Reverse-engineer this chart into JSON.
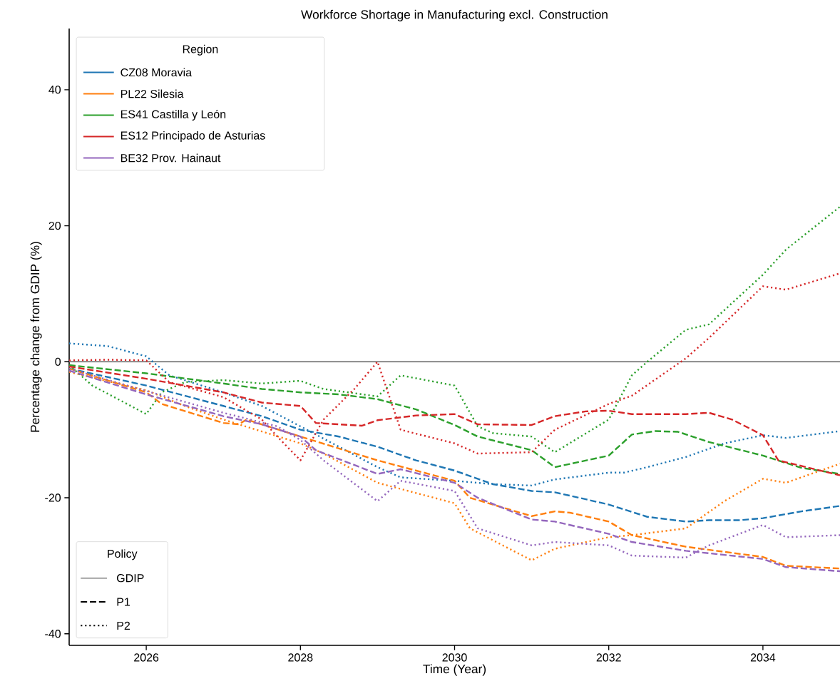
{
  "chart_data": {
    "type": "line",
    "title": "Workforce Shortage in Manufacturing excl. Construction",
    "xlabel": "Time (Year)",
    "ylabel": "Percentage change from GDIP (%)",
    "legend_title": "Region",
    "legend": "top left",
    "grid": false,
    "marker": "none",
    "xlim": [
      2025,
      2035
    ],
    "ylim": [
      -41.7,
      49
    ],
    "xticks": [
      2026,
      2028,
      2030,
      2032,
      2034
    ],
    "yticks": [
      -40,
      -20,
      0,
      20,
      40
    ],
    "annotations": [
      "Policy",
      "P1",
      "P2"
    ],
    "series": [
      {
        "name": "GDIP",
        "color": "#808080",
        "line_style": "solid",
        "x": [
          2025,
          2035
        ],
        "values": [
          0,
          0
        ]
      },
      {
        "name": "CZ08 Moravia",
        "color": "#1f77b4",
        "line_style": "dashed",
        "x": [
          2025,
          2026,
          2027,
          2027.5,
          2028,
          2028.5,
          2029,
          2029.5,
          2030,
          2030.5,
          2031,
          2031.3,
          2031.5,
          2032,
          2032.5,
          2033,
          2033.3,
          2033.7,
          2034,
          2034.5,
          2035
        ],
        "values": [
          -1,
          -3.5,
          -6.5,
          -8,
          -10,
          -11,
          -12.5,
          -14.5,
          -16,
          -18,
          -19,
          -19.2,
          -19.7,
          -21,
          -22.8,
          -23.5,
          -23.3,
          -23.3,
          -23,
          -22,
          -21.2
        ]
      },
      {
        "color": "#1f77b4",
        "line_style": "dotted",
        "x": [
          2025,
          2025.5,
          2026,
          2026.3,
          2027,
          2027.5,
          2028,
          2028.5,
          2029,
          2029.3,
          2030,
          2030.5,
          2031,
          2031.3,
          2032,
          2032.2,
          2032.5,
          2033,
          2033.5,
          2034,
          2034.3,
          2035
        ],
        "values": [
          2.7,
          2.3,
          0.8,
          -2,
          -4.5,
          -6.5,
          -9.5,
          -12.5,
          -15.5,
          -17,
          -17.5,
          -18,
          -18.2,
          -17.3,
          -16.3,
          -16.3,
          -15.5,
          -14,
          -12,
          -10.8,
          -11.2,
          -10.2
        ]
      },
      {
        "name": "PL22 Silesia",
        "color": "#ff7f0e",
        "line_style": "dashed",
        "x": [
          2025,
          2026,
          2026.2,
          2027,
          2027.2,
          2027.3,
          2028,
          2029,
          2030,
          2030.2,
          2031,
          2031.3,
          2031.5,
          2032,
          2032.3,
          2033,
          2034,
          2034.3,
          2035
        ],
        "values": [
          -1,
          -4.5,
          -6.2,
          -9,
          -9.2,
          -8.5,
          -11,
          -14.5,
          -17.5,
          -20,
          -22.7,
          -22,
          -22.2,
          -23.5,
          -25.5,
          -27.2,
          -28.7,
          -30,
          -30.4
        ]
      },
      {
        "color": "#ff7f0e",
        "line_style": "dotted",
        "x": [
          2025,
          2026,
          2026.5,
          2027,
          2028,
          2028.3,
          2029,
          2030,
          2030.2,
          2031,
          2031.3,
          2032,
          2032.3,
          2033,
          2033.5,
          2034,
          2034.3,
          2035
        ],
        "values": [
          -1.5,
          -4.2,
          -6.5,
          -8.5,
          -12,
          -13.5,
          -17.8,
          -20.8,
          -24.5,
          -29.2,
          -27.5,
          -25.8,
          -25.5,
          -24.5,
          -20.5,
          -17.2,
          -17.8,
          -15
        ]
      },
      {
        "name": "ES41 Castilla y León",
        "color": "#2ca02c",
        "line_style": "dashed",
        "x": [
          2025,
          2026,
          2027,
          2027.5,
          2028,
          2028.5,
          2029,
          2029.5,
          2030,
          2030.3,
          2031,
          2031.3,
          2032,
          2032.3,
          2032.6,
          2032.9,
          2033.3,
          2034,
          2034.5,
          2035
        ],
        "values": [
          -0.5,
          -1.7,
          -3.2,
          -4,
          -4.5,
          -4.8,
          -5.5,
          -7,
          -9.3,
          -11,
          -13,
          -15.5,
          -13.8,
          -10.7,
          -10.2,
          -10.3,
          -11.8,
          -13.8,
          -15.6,
          -16.5
        ]
      },
      {
        "color": "#2ca02c",
        "line_style": "dotted",
        "x": [
          2025,
          2025.3,
          2026,
          2026.2,
          2026.5,
          2027,
          2027.5,
          2028,
          2028.3,
          2029,
          2029.3,
          2030,
          2030.3,
          2030.5,
          2031,
          2031.3,
          2032,
          2032.3,
          2032.5,
          2033,
          2033.3,
          2034,
          2034.3,
          2035
        ],
        "values": [
          -0.5,
          -3.5,
          -7.7,
          -4.5,
          -3,
          -2.7,
          -3.2,
          -2.8,
          -4,
          -5.1,
          -2,
          -3.5,
          -9.5,
          -10.5,
          -11,
          -13.3,
          -8.5,
          -2,
          0,
          4.7,
          5.5,
          12.8,
          16.5,
          22.8
        ]
      },
      {
        "name": "ES12 Principado de Asturias",
        "color": "#d62728",
        "line_style": "dashed",
        "x": [
          2025,
          2026,
          2027,
          2027.5,
          2028,
          2028.2,
          2028.5,
          2028.8,
          2029,
          2029.5,
          2030,
          2030.3,
          2031,
          2031.3,
          2031.7,
          2032,
          2032.3,
          2033,
          2033.3,
          2033.6,
          2034,
          2034.2,
          2035
        ],
        "values": [
          -0.7,
          -2.5,
          -4.5,
          -6,
          -6.5,
          -9,
          -9.2,
          -9.4,
          -8.6,
          -7.9,
          -7.7,
          -9.2,
          -9.3,
          -8,
          -7.3,
          -7.2,
          -7.7,
          -7.7,
          -7.5,
          -8.5,
          -10.8,
          -14.5,
          -16.7
        ]
      },
      {
        "color": "#d62728",
        "line_style": "dotted",
        "x": [
          2025,
          2025.5,
          2026,
          2026.3,
          2027,
          2027.5,
          2027.7,
          2028,
          2028.3,
          2028.7,
          2029,
          2029.3,
          2030,
          2030.3,
          2031,
          2031.3,
          2032,
          2032.3,
          2033,
          2033.3,
          2034,
          2034.3,
          2035
        ],
        "values": [
          0.2,
          0.3,
          0.2,
          -3,
          -5.2,
          -8.5,
          -11,
          -14.5,
          -8.5,
          -4,
          0,
          -10,
          -12,
          -13.5,
          -13.3,
          -10,
          -6.2,
          -5,
          0.5,
          3.5,
          11.1,
          10.6,
          13
        ]
      },
      {
        "name": "BE32 Prov. Hainaut",
        "color": "#9467bd",
        "line_style": "dashed",
        "x": [
          2025,
          2026,
          2027,
          2027.5,
          2028,
          2028.2,
          2029,
          2029.3,
          2030,
          2030.3,
          2031,
          2031.3,
          2032,
          2032.3,
          2033,
          2034,
          2034.3,
          2035
        ],
        "values": [
          -1.3,
          -4.8,
          -8,
          -9.2,
          -11,
          -13,
          -16.5,
          -15.8,
          -17.8,
          -20,
          -23.2,
          -23.5,
          -25.3,
          -26.5,
          -27.8,
          -29,
          -30.2,
          -30.8
        ]
      },
      {
        "color": "#9467bd",
        "line_style": "dotted",
        "x": [
          2025,
          2026,
          2027,
          2027.7,
          2028,
          2028.3,
          2029,
          2029.3,
          2030,
          2030.3,
          2031,
          2031.3,
          2032,
          2032.3,
          2033,
          2033.3,
          2034,
          2034.3,
          2035
        ],
        "values": [
          -1,
          -4.3,
          -7.5,
          -9.5,
          -11.5,
          -14.5,
          -20.5,
          -17.5,
          -19,
          -24.5,
          -27,
          -26.5,
          -27,
          -28.5,
          -28.8,
          -27,
          -24,
          -25.8,
          -25.5
        ]
      }
    ]
  }
}
